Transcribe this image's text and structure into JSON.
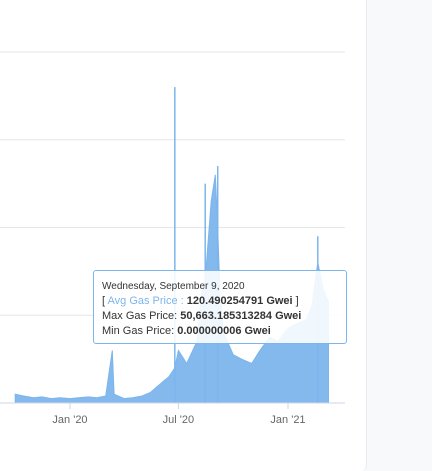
{
  "chart_data": {
    "type": "area",
    "xlabel": "",
    "ylabel": "",
    "x_tick_labels": [
      "Jan '20",
      "Jul '20",
      "Jan '21"
    ],
    "grid": true,
    "series": [
      {
        "name": "Avg Gas Price",
        "color": "#7cb5ec",
        "note_visible_range": "late 2019 to Mar 2021",
        "x": [
          "2019-10-01",
          "2019-10-15",
          "2019-11-01",
          "2019-11-15",
          "2019-12-01",
          "2019-12-15",
          "2020-01-01",
          "2020-01-15",
          "2020-02-01",
          "2020-02-15",
          "2020-03-01",
          "2020-03-12",
          "2020-03-15",
          "2020-04-01",
          "2020-04-15",
          "2020-05-01",
          "2020-05-15",
          "2020-06-01",
          "2020-06-15",
          "2020-06-25",
          "2020-07-01",
          "2020-07-15",
          "2020-08-01",
          "2020-08-10",
          "2020-08-15",
          "2020-08-25",
          "2020-09-01",
          "2020-09-05",
          "2020-09-09",
          "2020-09-15",
          "2020-10-01",
          "2020-10-15",
          "2020-11-01",
          "2020-11-15",
          "2020-12-01",
          "2020-12-15",
          "2021-01-01",
          "2021-01-15",
          "2021-02-01",
          "2021-02-10",
          "2021-02-20",
          "2021-03-01",
          "2021-03-10"
        ],
        "values": [
          10,
          8,
          6,
          7,
          5,
          6,
          5,
          6,
          7,
          6,
          8,
          60,
          10,
          5,
          6,
          8,
          12,
          22,
          30,
          40,
          60,
          45,
          70,
          130,
          140,
          230,
          260,
          200,
          120,
          80,
          55,
          50,
          45,
          60,
          75,
          70,
          85,
          90,
          95,
          110,
          160,
          130,
          115
        ]
      }
    ],
    "spikes": [
      {
        "x": "2020-06-25",
        "value": 360
      },
      {
        "x": "2020-08-15",
        "value": 250
      },
      {
        "x": "2020-09-05",
        "value": 270
      },
      {
        "x": "2021-02-20",
        "value": 190
      }
    ]
  },
  "tooltip": {
    "date": "Wednesday, September 9, 2020",
    "open_bracket": "[",
    "series_label": "Avg Gas Price :",
    "avg_value": "120.490254791 Gwei",
    "close_bracket": "]",
    "max_label": "Max Gas Price:",
    "max_value": "50,663.185313284 Gwei",
    "min_label": "Min Gas Price:",
    "min_value": "0.000000006 Gwei"
  }
}
